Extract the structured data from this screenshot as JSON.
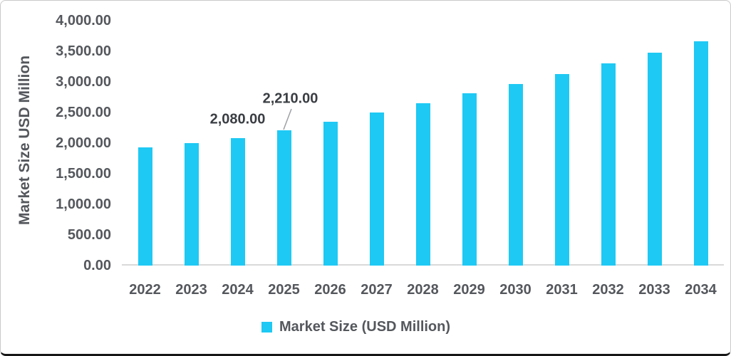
{
  "chart_data": {
    "type": "bar",
    "title": "",
    "xlabel": "",
    "ylabel": "Market Size USD Million",
    "categories": [
      "2022",
      "2023",
      "2024",
      "2025",
      "2026",
      "2027",
      "2028",
      "2029",
      "2030",
      "2031",
      "2032",
      "2033",
      "2034"
    ],
    "series": [
      {
        "name": "Market Size (USD Million)",
        "values": [
          1930,
          2000,
          2080,
          2210,
          2350,
          2500,
          2650,
          2810,
          2970,
          3130,
          3300,
          3480,
          3660
        ]
      }
    ],
    "ylim": [
      0,
      4000
    ],
    "y_tick_step": 500,
    "y_tick_labels": [
      "0.00",
      "500.00",
      "1,000.00",
      "1,500.00",
      "2,000.00",
      "2,500.00",
      "3,000.00",
      "3,500.00",
      "4,000.00"
    ],
    "grid": "off",
    "legend_position": "bottom",
    "bar_color": "#1ec9f4",
    "annotations": [
      {
        "category": "2024",
        "text": "2,080.00",
        "leader_line": false
      },
      {
        "category": "2025",
        "text": "2,210.00",
        "leader_line": true
      }
    ]
  },
  "legend": {
    "label": "Market Size (USD Million)"
  },
  "colors": {
    "bar": "#1ec9f4",
    "axis_line": "#d9d9d9",
    "tick_text": "#54575c",
    "data_label_text": "#3a3e43",
    "leader_line": "#9da0a3"
  }
}
